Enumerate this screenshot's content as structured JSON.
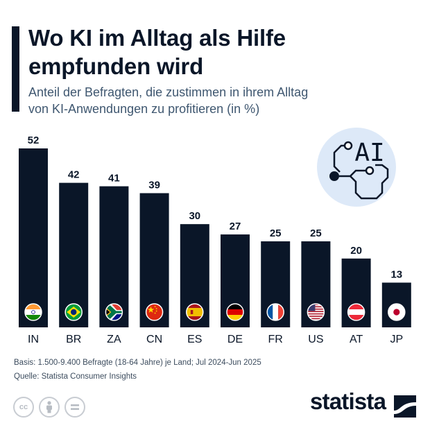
{
  "header": {
    "title_line1": "Wo KI im Alltag als Hilfe",
    "title_line2": "empfunden wird",
    "subtitle_line1": "Anteil der Befragten, die zustimmen in ihrem Alltag",
    "subtitle_line2": "von KI-Anwendungen zu profitieren (in %)"
  },
  "badge": {
    "text": "AI",
    "icon": "circuit-ai-icon"
  },
  "chart_data": {
    "type": "bar",
    "title": "Wo KI im Alltag als Hilfe empfunden wird",
    "subtitle": "Anteil der Befragten, die zustimmen in ihrem Alltag von KI-Anwendungen zu profitieren (in %)",
    "xlabel": "",
    "ylabel": "",
    "categories": [
      "IN",
      "BR",
      "ZA",
      "CN",
      "ES",
      "DE",
      "FR",
      "US",
      "AT",
      "JP"
    ],
    "values": [
      52,
      42,
      41,
      39,
      30,
      27,
      25,
      25,
      20,
      13
    ],
    "flags": [
      "flag-india-icon",
      "flag-brazil-icon",
      "flag-south-africa-icon",
      "flag-china-icon",
      "flag-spain-icon",
      "flag-germany-icon",
      "flag-france-icon",
      "flag-usa-icon",
      "flag-austria-icon",
      "flag-japan-icon"
    ],
    "ylim": [
      0,
      52
    ],
    "bar_color": "#0a1628",
    "grid": false
  },
  "footer": {
    "basis": "Basis: 1.500-9.400 Befragte (18-64 Jahre) je Land; Jul 2024-Jun 2025",
    "source": "Quelle: Statista Consumer Insights",
    "brand": "statista",
    "license_icons": [
      "cc-icon",
      "attribution-icon",
      "no-derivatives-icon"
    ]
  }
}
